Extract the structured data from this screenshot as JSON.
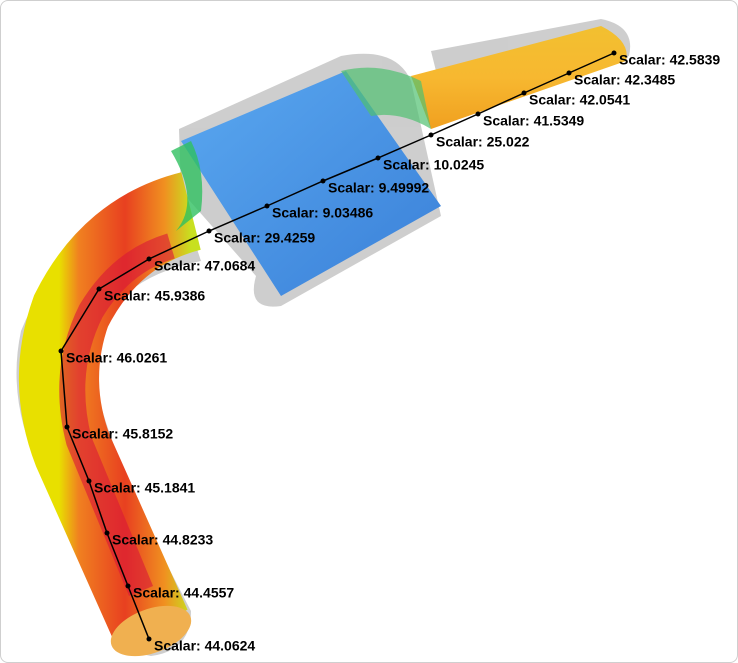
{
  "probes": [
    {
      "label": "Scalar: 42.5839"
    },
    {
      "label": "Scalar: 42.3485"
    },
    {
      "label": "Scalar: 42.0541"
    },
    {
      "label": "Scalar: 41.5349"
    },
    {
      "label": "Scalar: 25.022"
    },
    {
      "label": "Scalar: 10.0245"
    },
    {
      "label": "Scalar: 9.49992"
    },
    {
      "label": "Scalar: 9.03486"
    },
    {
      "label": "Scalar: 29.4259"
    },
    {
      "label": "Scalar: 47.0684"
    },
    {
      "label": "Scalar: 45.9386"
    },
    {
      "label": "Scalar: 46.0261"
    },
    {
      "label": "Scalar: 45.8152"
    },
    {
      "label": "Scalar: 45.1841"
    },
    {
      "label": "Scalar: 44.8233"
    },
    {
      "label": "Scalar: 44.4557"
    },
    {
      "label": "Scalar: 44.0624"
    }
  ]
}
